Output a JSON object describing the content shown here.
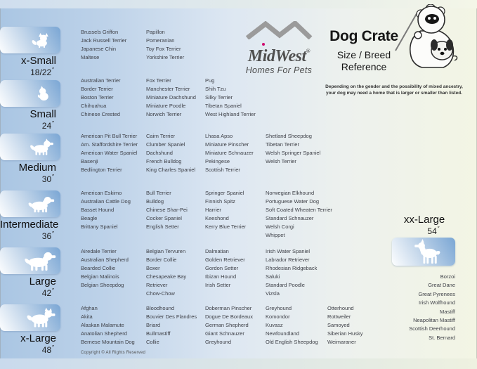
{
  "header": {
    "logo": {
      "brand": "MidWest",
      "registered": "®",
      "tagline": "Homes For Pets"
    },
    "title": "Dog Crate",
    "subtitle_line1": "Size / Breed",
    "subtitle_line2": "Reference",
    "note_line1": "Depending on the gender and the possibility of mixed ancestry,",
    "note_line2": "your dog may need  a home that is larger or smaller than listed."
  },
  "sizes": [
    {
      "id": "x-small",
      "label": "x-Small",
      "dimension": "18/22",
      "unit": "″",
      "columns": [
        [
          "Brussels Griffon",
          "Jack Russell Terrier",
          "Japanese Chin",
          "Maltese"
        ],
        [
          "Papillon",
          "Pomeranian",
          "Toy Fox Terrier",
          "Yorkshire Terrier"
        ]
      ]
    },
    {
      "id": "small",
      "label": "Small",
      "dimension": "24",
      "unit": "″",
      "columns": [
        [
          "Australian Terrier",
          "Border Terrier",
          "Boston Terrier",
          "Chihuahua",
          "Chinese Crested"
        ],
        [
          "Fox Terrier",
          "Manchester Terrier",
          "Miniature Dachshund",
          "Miniature Poodle",
          "Norwich Terrier"
        ],
        [
          "Pug",
          "Shih Tzu",
          "Silky Terrier",
          "Tibetan Spaniel",
          "West Highland Terrier"
        ]
      ]
    },
    {
      "id": "medium",
      "label": "Medium",
      "dimension": "30",
      "unit": "″",
      "columns": [
        [
          "American Pit Bull Terrier",
          "Am. Staffordshire Terrier",
          "American Water Spaniel",
          "Basenji",
          "Bedlington Terrier"
        ],
        [
          "Cairn Terrier",
          "Clumber Spaniel",
          "Dachshund",
          "French Bulldog",
          "King Charles Spaniel"
        ],
        [
          "Lhasa Apso",
          "Miniature Pinscher",
          "Miniature Schnauzer",
          "Pekingese",
          "Scottish Terrier"
        ],
        [
          "Shetland Sheepdog",
          "Tibetan Terrier",
          "Welsh Springer Spaniel",
          "Welsh Terrier"
        ]
      ]
    },
    {
      "id": "intermediate",
      "label": "Intermediate",
      "dimension": "36",
      "unit": "″",
      "columns": [
        [
          "American Eskimo",
          "Australian Cattle Dog",
          "Basset Hound",
          "Beagle",
          "Brittany Spaniel"
        ],
        [
          "Bull Terrier",
          "Bulldog",
          "Chinese Shar-Pei",
          "Cocker Spaniel",
          "English Setter"
        ],
        [
          "Springer Spaniel",
          "Finnish Spitz",
          "Harrier",
          "Keeshond",
          "Kerry Blue Terrier"
        ],
        [
          "Norwegian Elkhound",
          "Portuguese Water Dog",
          "Soft Coated Wheaten Terrier",
          "Standard Schnauzer",
          "Welsh Corgi",
          "Whippet"
        ]
      ]
    },
    {
      "id": "large",
      "label": "Large",
      "dimension": "42",
      "unit": "″",
      "columns": [
        [
          "Airedale Terrier",
          "Australian Shepherd",
          "Bearded Collie",
          "Belgian Malinois",
          "Belgian Sheepdog"
        ],
        [
          "Belgian Tervuren",
          "Border Collie",
          "Boxer",
          "Chesapeake Bay\nRetriever",
          "Chow-Chow"
        ],
        [
          "Dalmatian",
          "Golden Retriever",
          "Gordon Setter",
          "Ibizan Hound",
          "Irish Setter"
        ],
        [
          "Irish Water Spaniel",
          "Labrador Retriever",
          "Rhodesian Ridgeback",
          "Saluki",
          "Standard Poodle",
          "Vizsla"
        ]
      ]
    },
    {
      "id": "x-large",
      "label": "x-Large",
      "dimension": "48",
      "unit": "″",
      "columns": [
        [
          "Afghan",
          "Akita",
          "Alaskan Malamute",
          "Anatolian Shepherd",
          "Bernese Mountain Dog"
        ],
        [
          "Bloodhound",
          "Bouvier Des Flandres",
          "Briard",
          "Bullmastiff",
          "Collie"
        ],
        [
          "Doberman Pinscher",
          "Dogue De Bordeaux",
          "German Shepherd",
          "Giant Schnauzer",
          "Greyhound"
        ],
        [
          "Greyhound",
          "Komondor",
          "Kuvasz",
          "Newfoundland",
          "Old English Sheepdog"
        ],
        [
          "Otterhound",
          "Rottweiler",
          "Samoyed",
          "Siberian Husky",
          "Weimaraner"
        ]
      ]
    }
  ],
  "xx_large": {
    "label": "xx-Large",
    "dimension": "54",
    "unit": "″",
    "breeds": [
      "Borzoi",
      "Great Dane",
      "Great Pyrenees",
      "Irish Wolfhound",
      "Mastiff",
      "Neapolitan Mastiff",
      "Scottish Deerhound",
      "St. Bernard"
    ]
  },
  "footer": {
    "copyright": "Copyright © All Rights Reserved"
  },
  "colors": {
    "background_left": "#aac6e3",
    "background_right": "#f3f5e4",
    "badge_blue": "#7aa6d4",
    "badge_light": "#fdfeff",
    "text_dark": "#3f4148",
    "logo_gray": "#9b9b9b",
    "logo_i_dot": "#cf0a6e"
  }
}
